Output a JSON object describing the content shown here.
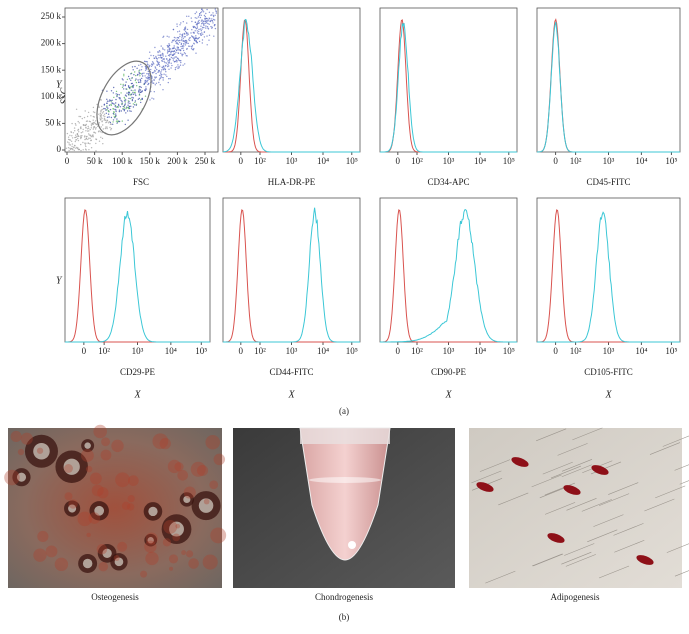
{
  "figure": {
    "panel_a": {
      "label": "(a)",
      "scatter": {
        "x_label": "FSC",
        "y_label": "SSC",
        "y_letter": "Y",
        "xticks": [
          "0",
          "50 k",
          "100 k",
          "150 k",
          "200 k",
          "250 k"
        ],
        "yticks": [
          "0",
          "50 k",
          "100 k",
          "150 k",
          "200 k",
          "250 k"
        ]
      },
      "histogram_ticks": [
        "0",
        "10²",
        "10³",
        "10⁴",
        "10⁵"
      ],
      "histograms": [
        {
          "label": "HLA-DR-PE"
        },
        {
          "label": "CD34-APC"
        },
        {
          "label": "CD45-FITC"
        },
        {
          "label": "CD29-PE"
        },
        {
          "label": "CD44-FITC"
        },
        {
          "label": "CD90-PE"
        },
        {
          "label": "CD105-FITC"
        }
      ],
      "row2_y_letter": "Y",
      "x_letter": "X"
    },
    "panel_b": {
      "label": "(b)",
      "images": [
        {
          "caption": "Osteogenesis"
        },
        {
          "caption": "Chondrogenesis"
        },
        {
          "caption": "Adipogenesis"
        }
      ]
    }
  }
}
